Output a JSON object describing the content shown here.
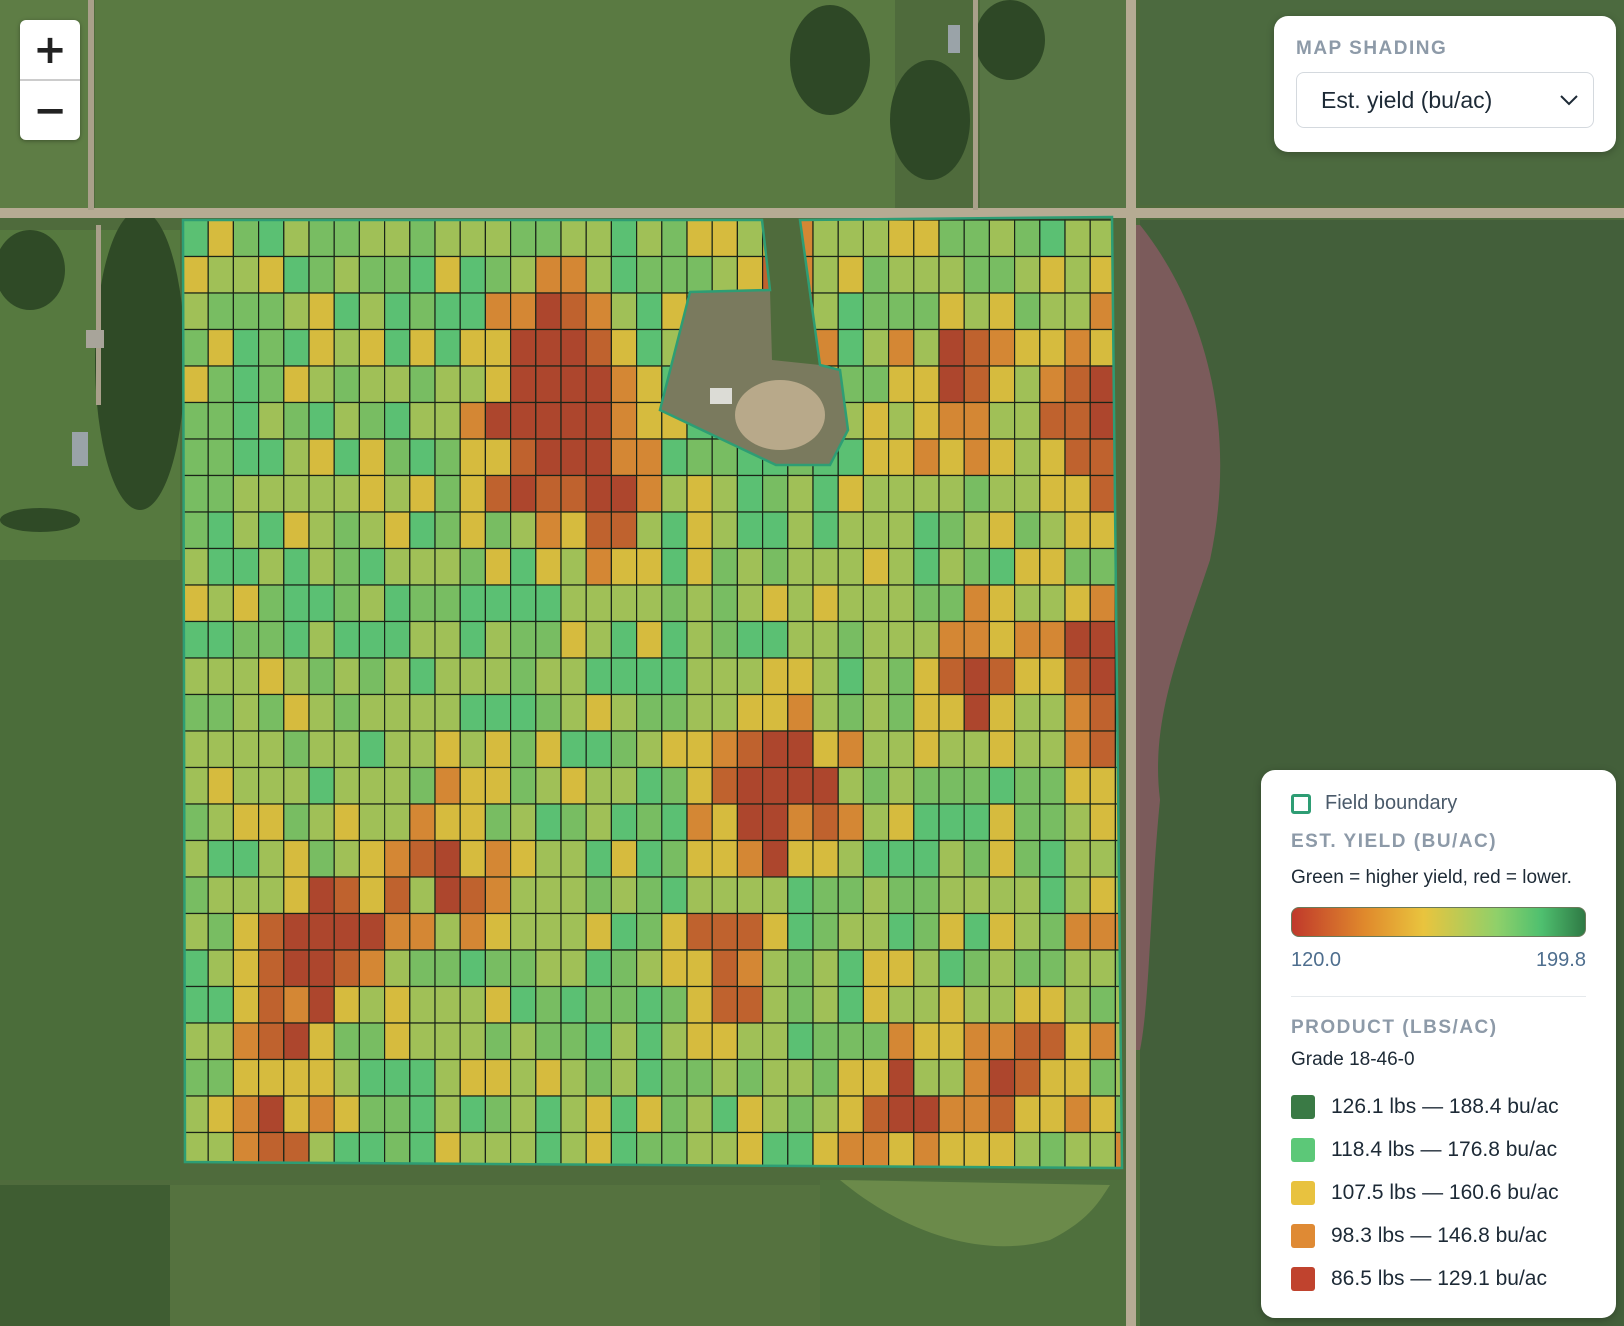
{
  "zoom": {
    "in_label": "+",
    "out_label": "−"
  },
  "map_shading": {
    "title": "MAP SHADING",
    "selected": "Est. yield (bu/ac)"
  },
  "legend": {
    "boundary_label": "Field boundary",
    "yield_title": "EST. YIELD (BU/AC)",
    "yield_desc": "Green = higher yield, red = lower.",
    "range_min": "120.0",
    "range_max": "199.8",
    "product_title": "PRODUCT (LBS/AC)",
    "product_grade": "Grade 18-46-0",
    "classes": [
      {
        "label": "126.1 lbs — 188.4 bu/ac",
        "color": "#3a7a45"
      },
      {
        "label": "118.4 lbs — 176.8 bu/ac",
        "color": "#5cc878"
      },
      {
        "label": "107.5 lbs — 160.6 bu/ac",
        "color": "#e8c23f"
      },
      {
        "label": "98.3 lbs — 146.8 bu/ac",
        "color": "#df8a34"
      },
      {
        "label": "86.5 lbs — 129.1 bu/ac",
        "color": "#c0432e"
      }
    ]
  },
  "colors": {
    "boundary": "#2e9d74",
    "yield_low": "#c0392b",
    "yield_high": "#2f7a45"
  }
}
